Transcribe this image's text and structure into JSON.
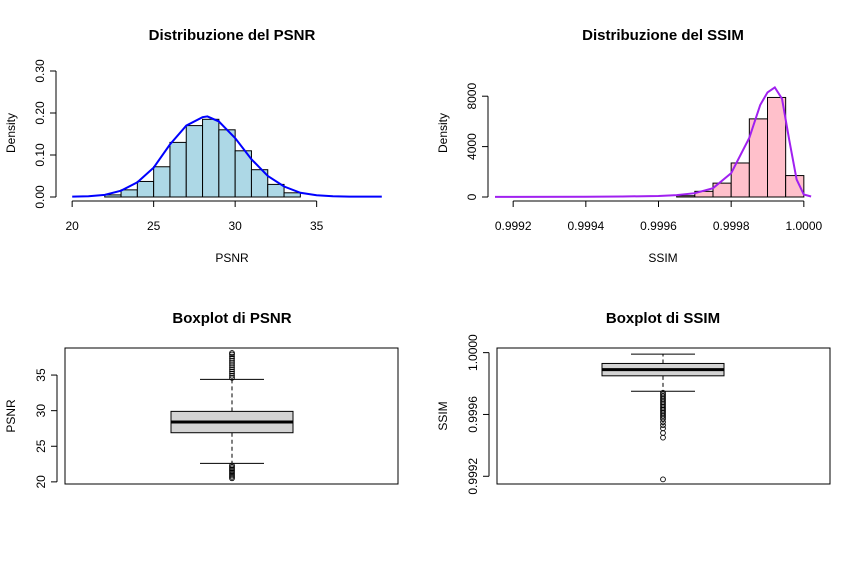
{
  "chart_data": [
    {
      "type": "bar",
      "title": "Distribuzione del PSNR",
      "xlabel": "PSNR",
      "ylabel": "Density",
      "xlim": [
        19.5,
        39.5
      ],
      "ylim": [
        0,
        0.3
      ],
      "x_ticks": [
        "20",
        "25",
        "30",
        "35"
      ],
      "y_ticks": [
        "0.00",
        "0.10",
        "0.20",
        "0.30"
      ],
      "bar_color": "#add8e6",
      "curve_color": "#0000ff",
      "bins": [
        {
          "from": 22,
          "to": 23,
          "value": 0.005
        },
        {
          "from": 23,
          "to": 24,
          "value": 0.017
        },
        {
          "from": 24,
          "to": 25,
          "value": 0.037
        },
        {
          "from": 25,
          "to": 26,
          "value": 0.072
        },
        {
          "from": 26,
          "to": 27,
          "value": 0.13
        },
        {
          "from": 27,
          "to": 28,
          "value": 0.17
        },
        {
          "from": 28,
          "to": 29,
          "value": 0.185
        },
        {
          "from": 29,
          "to": 30,
          "value": 0.16
        },
        {
          "from": 30,
          "to": 31,
          "value": 0.11
        },
        {
          "from": 31,
          "to": 32,
          "value": 0.065
        },
        {
          "from": 32,
          "to": 33,
          "value": 0.03
        },
        {
          "from": 33,
          "to": 34,
          "value": 0.01
        }
      ],
      "density_curve": {
        "x": [
          20,
          21,
          22,
          23,
          24,
          25,
          26,
          27,
          28,
          28.3,
          29,
          30,
          31,
          32,
          33,
          34,
          35,
          36,
          37,
          38,
          39
        ],
        "y": [
          0.001,
          0.002,
          0.005,
          0.015,
          0.035,
          0.07,
          0.125,
          0.17,
          0.19,
          0.192,
          0.18,
          0.14,
          0.09,
          0.05,
          0.025,
          0.01,
          0.004,
          0.002,
          0.001,
          0.001,
          0.001
        ]
      }
    },
    {
      "type": "bar",
      "title": "Distribuzione del SSIM",
      "xlabel": "SSIM",
      "ylabel": "Density",
      "xlim": [
        0.99915,
        1.00005
      ],
      "ylim": [
        0,
        10000
      ],
      "x_ticks": [
        "0.9992",
        "0.9994",
        "0.9996",
        "0.9998",
        "1.0000"
      ],
      "x_tick_values": [
        0.9992,
        0.9994,
        0.9996,
        0.9998,
        1.0
      ],
      "y_ticks": [
        "0",
        "4000",
        "8000"
      ],
      "y_tick_values": [
        0,
        4000,
        8000
      ],
      "bar_color": "#ffc0cb",
      "curve_color": "#a020f0",
      "bins": [
        {
          "from": 0.99965,
          "to": 0.9997,
          "value": 100
        },
        {
          "from": 0.9997,
          "to": 0.99975,
          "value": 450
        },
        {
          "from": 0.99975,
          "to": 0.9998,
          "value": 1100
        },
        {
          "from": 0.9998,
          "to": 0.99985,
          "value": 2700
        },
        {
          "from": 0.99985,
          "to": 0.9999,
          "value": 6200
        },
        {
          "from": 0.9999,
          "to": 0.99995,
          "value": 7900
        },
        {
          "from": 0.99995,
          "to": 1.0,
          "value": 1700
        }
      ],
      "density_curve": {
        "x": [
          0.99915,
          0.9992,
          0.9994,
          0.9995,
          0.9996,
          0.99965,
          0.9997,
          0.99975,
          0.9998,
          0.99985,
          0.99988,
          0.9999,
          0.99992,
          0.99994,
          0.99996,
          0.99998,
          1.0,
          1.00002
        ],
        "y": [
          10,
          10,
          20,
          40,
          80,
          150,
          300,
          700,
          1900,
          4700,
          7300,
          8300,
          8700,
          7800,
          4500,
          1400,
          200,
          40
        ]
      }
    },
    {
      "type": "boxplot",
      "title": "Boxplot di PSNR",
      "xlabel": "",
      "ylabel": "PSNR",
      "ylim": [
        19.7,
        38.8
      ],
      "y_ticks": [
        "20",
        "25",
        "30",
        "35"
      ],
      "y_tick_values": [
        20,
        25,
        30,
        35
      ],
      "box_color": "#d3d3d3",
      "stats": {
        "whisker_low": 22.6,
        "q1": 26.9,
        "median": 28.4,
        "q3": 29.9,
        "whisker_high": 34.4
      },
      "outliers_low": [
        22.3,
        22.1,
        21.9,
        21.7,
        21.5,
        21.3,
        21.1,
        20.9,
        20.7,
        20.5
      ],
      "outliers_high": [
        34.6,
        34.9,
        35.2,
        35.5,
        35.8,
        36.1,
        36.4,
        36.7,
        37.0,
        37.3,
        37.6,
        37.9,
        38.1
      ]
    },
    {
      "type": "boxplot",
      "title": "Boxplot di SSIM",
      "xlabel": "",
      "ylabel": "SSIM",
      "ylim": [
        0.99915,
        1.00003
      ],
      "y_ticks": [
        "0.9992",
        "0.9996",
        "1.0000"
      ],
      "y_tick_values": [
        0.9992,
        0.9996,
        1.0
      ],
      "box_color": "#d3d3d3",
      "stats": {
        "whisker_low": 0.99975,
        "q1": 0.99985,
        "median": 0.99989,
        "q3": 0.99993,
        "whisker_high": 0.99999
      },
      "outliers_low": [
        0.99974,
        0.99973,
        0.99972,
        0.99971,
        0.9997,
        0.99969,
        0.99968,
        0.99967,
        0.99966,
        0.99965,
        0.99964,
        0.99963,
        0.99962,
        0.99961,
        0.9996,
        0.99959,
        0.99958,
        0.99957,
        0.99955,
        0.99953,
        0.99951,
        0.99948,
        0.99945,
        0.99918
      ]
    }
  ]
}
